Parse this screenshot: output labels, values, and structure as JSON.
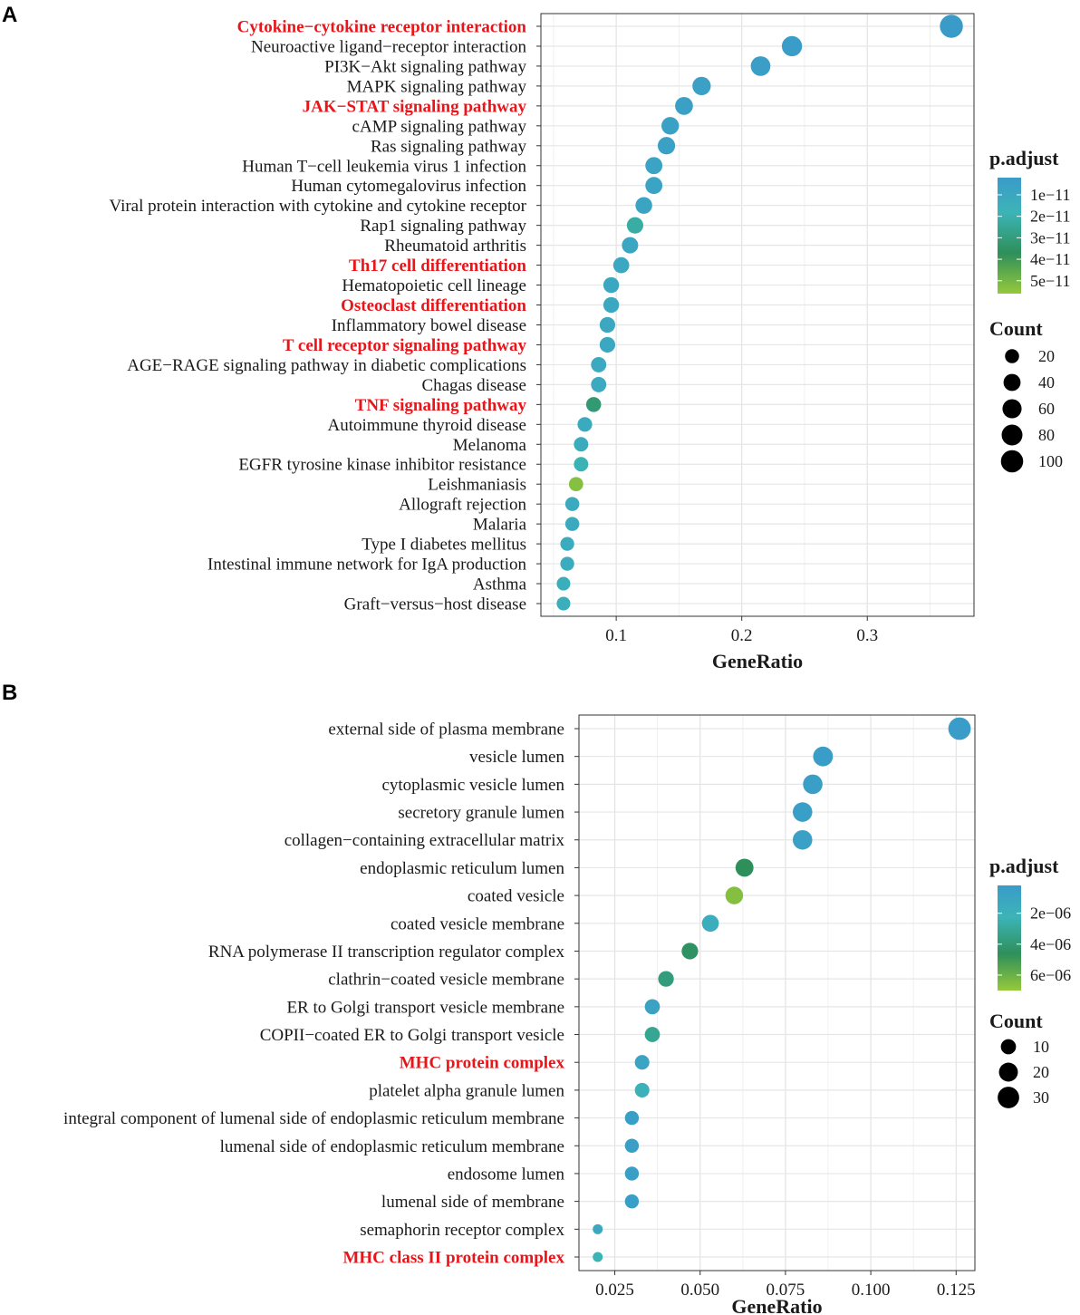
{
  "chart_data": [
    {
      "panel": "A",
      "type": "scatter",
      "xlabel": "GeneRatio",
      "ylabel": "",
      "xlim": [
        0.04,
        0.385
      ],
      "xticks": [
        "0.1",
        "0.2",
        "0.3"
      ],
      "xtick_values": [
        0.1,
        0.2,
        0.3
      ],
      "color_scale": {
        "low": "#3a9bc9",
        "high": "#96c93b",
        "mid1": "#3cb4b7",
        "mid2": "#2e8f5a",
        "vmin": 2e-12,
        "vmax": 5.6e-11
      },
      "color_legend": {
        "title": "p.adjust",
        "labels": [
          "1e−11",
          "2e−11",
          "3e−11",
          "4e−11",
          "5e−11"
        ],
        "values": [
          1e-11,
          2e-11,
          3e-11,
          4e-11,
          5e-11
        ]
      },
      "size_legend": {
        "title": "Count",
        "labels": [
          "20",
          "40",
          "60",
          "80",
          "100"
        ],
        "values": [
          20,
          40,
          60,
          80,
          100
        ]
      },
      "size_range": [
        10,
        120
      ],
      "categories": [
        {
          "label": "Cytokine−cytokine receptor interaction",
          "gene_ratio": 0.367,
          "count": 112,
          "p_adjust": 2e-12,
          "highlight": true
        },
        {
          "label": "Neuroactive ligand−receptor interaction",
          "gene_ratio": 0.24,
          "count": 73,
          "p_adjust": 3e-12,
          "highlight": false
        },
        {
          "label": "PI3K−Akt signaling pathway",
          "gene_ratio": 0.215,
          "count": 66,
          "p_adjust": 4e-12,
          "highlight": false
        },
        {
          "label": "MAPK signaling pathway",
          "gene_ratio": 0.168,
          "count": 52,
          "p_adjust": 5e-12,
          "highlight": false
        },
        {
          "label": "JAK−STAT signaling pathway",
          "gene_ratio": 0.154,
          "count": 47,
          "p_adjust": 5e-12,
          "highlight": true
        },
        {
          "label": "cAMP signaling pathway",
          "gene_ratio": 0.143,
          "count": 44,
          "p_adjust": 6e-12,
          "highlight": false
        },
        {
          "label": "Ras signaling pathway",
          "gene_ratio": 0.14,
          "count": 43,
          "p_adjust": 6e-12,
          "highlight": false
        },
        {
          "label": "Human T−cell leukemia virus 1 infection",
          "gene_ratio": 0.13,
          "count": 40,
          "p_adjust": 7e-12,
          "highlight": false
        },
        {
          "label": "Human cytomegalovirus infection",
          "gene_ratio": 0.13,
          "count": 40,
          "p_adjust": 7e-12,
          "highlight": false
        },
        {
          "label": "Viral protein interaction with cytokine and cytokine receptor",
          "gene_ratio": 0.122,
          "count": 37,
          "p_adjust": 8e-12,
          "highlight": false
        },
        {
          "label": "Rap1 signaling pathway",
          "gene_ratio": 0.115,
          "count": 35,
          "p_adjust": 2.2e-11,
          "highlight": false
        },
        {
          "label": "Rheumatoid arthritis",
          "gene_ratio": 0.111,
          "count": 34,
          "p_adjust": 9e-12,
          "highlight": false
        },
        {
          "label": "Th17 cell differentiation",
          "gene_ratio": 0.104,
          "count": 32,
          "p_adjust": 1e-11,
          "highlight": true
        },
        {
          "label": "Hematopoietic cell lineage",
          "gene_ratio": 0.096,
          "count": 30,
          "p_adjust": 1e-11,
          "highlight": false
        },
        {
          "label": "Osteoclast differentiation",
          "gene_ratio": 0.096,
          "count": 30,
          "p_adjust": 1e-11,
          "highlight": true
        },
        {
          "label": "Inflammatory bowel disease",
          "gene_ratio": 0.093,
          "count": 29,
          "p_adjust": 1e-11,
          "highlight": false
        },
        {
          "label": "T cell receptor signaling pathway",
          "gene_ratio": 0.093,
          "count": 29,
          "p_adjust": 1e-11,
          "highlight": true
        },
        {
          "label": "AGE−RAGE signaling pathway in diabetic complications",
          "gene_ratio": 0.086,
          "count": 27,
          "p_adjust": 1.1e-11,
          "highlight": false
        },
        {
          "label": "Chagas disease",
          "gene_ratio": 0.086,
          "count": 27,
          "p_adjust": 1.1e-11,
          "highlight": false
        },
        {
          "label": "TNF signaling pathway",
          "gene_ratio": 0.082,
          "count": 25,
          "p_adjust": 3.2e-11,
          "highlight": true
        },
        {
          "label": "Autoimmune thyroid disease",
          "gene_ratio": 0.075,
          "count": 23,
          "p_adjust": 1.2e-11,
          "highlight": false
        },
        {
          "label": "Melanoma",
          "gene_ratio": 0.072,
          "count": 22,
          "p_adjust": 1.3e-11,
          "highlight": false
        },
        {
          "label": "EGFR tyrosine kinase inhibitor resistance",
          "gene_ratio": 0.072,
          "count": 22,
          "p_adjust": 1.9e-11,
          "highlight": false
        },
        {
          "label": "Leishmaniasis",
          "gene_ratio": 0.068,
          "count": 21,
          "p_adjust": 5.3e-11,
          "highlight": false
        },
        {
          "label": "Allograft rejection",
          "gene_ratio": 0.065,
          "count": 20,
          "p_adjust": 1.2e-11,
          "highlight": false
        },
        {
          "label": "Malaria",
          "gene_ratio": 0.065,
          "count": 20,
          "p_adjust": 1.2e-11,
          "highlight": false
        },
        {
          "label": "Type I diabetes mellitus",
          "gene_ratio": 0.061,
          "count": 19,
          "p_adjust": 1.3e-11,
          "highlight": false
        },
        {
          "label": "Intestinal immune network for IgA production",
          "gene_ratio": 0.061,
          "count": 19,
          "p_adjust": 1.3e-11,
          "highlight": false
        },
        {
          "label": "Asthma",
          "gene_ratio": 0.058,
          "count": 18,
          "p_adjust": 1.4e-11,
          "highlight": false
        },
        {
          "label": "Graft−versus−host disease",
          "gene_ratio": 0.058,
          "count": 18,
          "p_adjust": 1.4e-11,
          "highlight": false
        }
      ]
    },
    {
      "panel": "B",
      "type": "scatter",
      "xlabel": "GeneRatio",
      "ylabel": "",
      "xlim": [
        0.0145,
        0.1305
      ],
      "xticks": [
        "0.025",
        "0.050",
        "0.075",
        "0.100",
        "0.125"
      ],
      "xtick_values": [
        0.025,
        0.05,
        0.075,
        0.1,
        0.125
      ],
      "color_scale": {
        "low": "#3a9bc9",
        "high": "#96c93b",
        "mid1": "#3cb4b7",
        "mid2": "#2e8f5a",
        "vmin": 2e-07,
        "vmax": 7e-06
      },
      "color_legend": {
        "title": "p.adjust",
        "labels": [
          "2e−06",
          "4e−06",
          "6e−06"
        ],
        "values": [
          2e-06,
          4e-06,
          6e-06
        ]
      },
      "size_legend": {
        "title": "Count",
        "labels": [
          "10",
          "20",
          "30"
        ],
        "values": [
          10,
          20,
          30
        ]
      },
      "size_range": [
        5,
        35
      ],
      "categories": [
        {
          "label": "external side of plasma membrane",
          "gene_ratio": 0.126,
          "count": 34,
          "p_adjust": 3e-07,
          "highlight": false
        },
        {
          "label": "vesicle lumen",
          "gene_ratio": 0.086,
          "count": 23,
          "p_adjust": 4e-07,
          "highlight": false
        },
        {
          "label": "cytoplasmic vesicle lumen",
          "gene_ratio": 0.083,
          "count": 22,
          "p_adjust": 5e-07,
          "highlight": false
        },
        {
          "label": "secretory granule lumen",
          "gene_ratio": 0.08,
          "count": 22,
          "p_adjust": 5e-07,
          "highlight": false
        },
        {
          "label": "collagen−containing extracellular matrix",
          "gene_ratio": 0.08,
          "count": 22,
          "p_adjust": 6e-07,
          "highlight": false
        },
        {
          "label": "endoplasmic reticulum lumen",
          "gene_ratio": 0.063,
          "count": 17,
          "p_adjust": 4.6e-06,
          "highlight": false
        },
        {
          "label": "coated vesicle",
          "gene_ratio": 0.06,
          "count": 16,
          "p_adjust": 6.6e-06,
          "highlight": false
        },
        {
          "label": "coated vesicle membrane",
          "gene_ratio": 0.053,
          "count": 14,
          "p_adjust": 1.7e-06,
          "highlight": false
        },
        {
          "label": "RNA polymerase II transcription regulator complex",
          "gene_ratio": 0.047,
          "count": 13,
          "p_adjust": 4.4e-06,
          "highlight": false
        },
        {
          "label": "clathrin−coated vesicle membrane",
          "gene_ratio": 0.04,
          "count": 11,
          "p_adjust": 3.8e-06,
          "highlight": false
        },
        {
          "label": "ER to Golgi transport vesicle membrane",
          "gene_ratio": 0.036,
          "count": 10,
          "p_adjust": 8e-07,
          "highlight": false
        },
        {
          "label": "COPII−coated ER to Golgi transport vesicle",
          "gene_ratio": 0.036,
          "count": 10,
          "p_adjust": 3.2e-06,
          "highlight": false
        },
        {
          "label": "MHC protein complex",
          "gene_ratio": 0.033,
          "count": 9,
          "p_adjust": 9e-07,
          "highlight": true
        },
        {
          "label": "platelet alpha granule lumen",
          "gene_ratio": 0.033,
          "count": 9,
          "p_adjust": 2e-06,
          "highlight": false
        },
        {
          "label": "integral component of lumenal side of endoplasmic reticulum membrane",
          "gene_ratio": 0.03,
          "count": 8,
          "p_adjust": 5e-07,
          "highlight": false
        },
        {
          "label": "lumenal side of endoplasmic reticulum membrane",
          "gene_ratio": 0.03,
          "count": 8,
          "p_adjust": 5e-07,
          "highlight": false
        },
        {
          "label": "endosome lumen",
          "gene_ratio": 0.03,
          "count": 8,
          "p_adjust": 5e-07,
          "highlight": false
        },
        {
          "label": "lumenal side of membrane",
          "gene_ratio": 0.03,
          "count": 8,
          "p_adjust": 5e-07,
          "highlight": false
        },
        {
          "label": "semaphorin receptor complex",
          "gene_ratio": 0.02,
          "count": 5,
          "p_adjust": 1.3e-06,
          "highlight": false
        },
        {
          "label": "MHC class II protein complex",
          "gene_ratio": 0.02,
          "count": 5,
          "p_adjust": 2.3e-06,
          "highlight": true
        }
      ]
    }
  ],
  "panels": [
    {
      "letter": "A"
    },
    {
      "letter": "B"
    }
  ]
}
